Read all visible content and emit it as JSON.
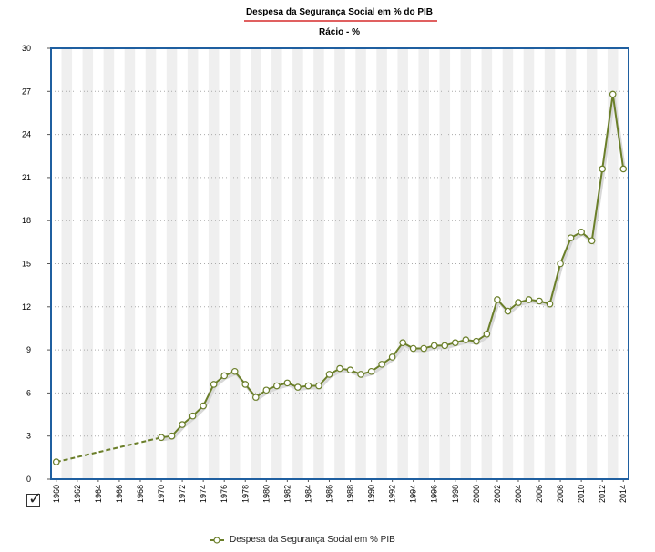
{
  "chart_data": {
    "type": "line",
    "title": "Despesa da Segurança Social em % do PIB",
    "subtitle": "Rácio - %",
    "ylim": [
      0,
      30
    ],
    "yticks": [
      0,
      3,
      6,
      9,
      12,
      15,
      18,
      21,
      24,
      27,
      30
    ],
    "xlim": [
      1960,
      2014
    ],
    "xticks": [
      1960,
      1962,
      1964,
      1966,
      1968,
      1970,
      1972,
      1974,
      1976,
      1978,
      1980,
      1982,
      1984,
      1986,
      1988,
      1990,
      1992,
      1994,
      1996,
      1998,
      2000,
      2002,
      2004,
      2006,
      2008,
      2010,
      2012,
      2014
    ],
    "grid": true,
    "legend_position": "bottom",
    "series": [
      {
        "name": "Despesa da Segurança Social em % PIB",
        "color": "#6b7f2a",
        "dashed_until": 1970,
        "x": [
          1960,
          1970,
          1971,
          1972,
          1973,
          1974,
          1975,
          1976,
          1977,
          1978,
          1979,
          1980,
          1981,
          1982,
          1983,
          1984,
          1985,
          1986,
          1987,
          1988,
          1989,
          1990,
          1991,
          1992,
          1993,
          1994,
          1995,
          1996,
          1997,
          1998,
          1999,
          2000,
          2001,
          2002,
          2003,
          2004,
          2005,
          2006,
          2007,
          2008,
          2009,
          2010,
          2011,
          2012,
          2013,
          2014
        ],
        "y": [
          1.2,
          2.9,
          3.0,
          3.8,
          4.4,
          5.1,
          6.6,
          7.2,
          7.5,
          6.6,
          5.7,
          6.2,
          6.5,
          6.7,
          6.4,
          6.5,
          6.5,
          7.3,
          7.7,
          7.6,
          7.3,
          7.5,
          8.0,
          8.5,
          9.5,
          9.1,
          9.1,
          9.3,
          9.3,
          9.5,
          9.7,
          9.6,
          10.1,
          12.5,
          11.7,
          12.3,
          12.5,
          12.4,
          12.2,
          15.0,
          16.8,
          17.2,
          16.6,
          21.6,
          26.8,
          21.6
        ]
      }
    ]
  },
  "ui": {
    "checkbox_checked": true
  }
}
